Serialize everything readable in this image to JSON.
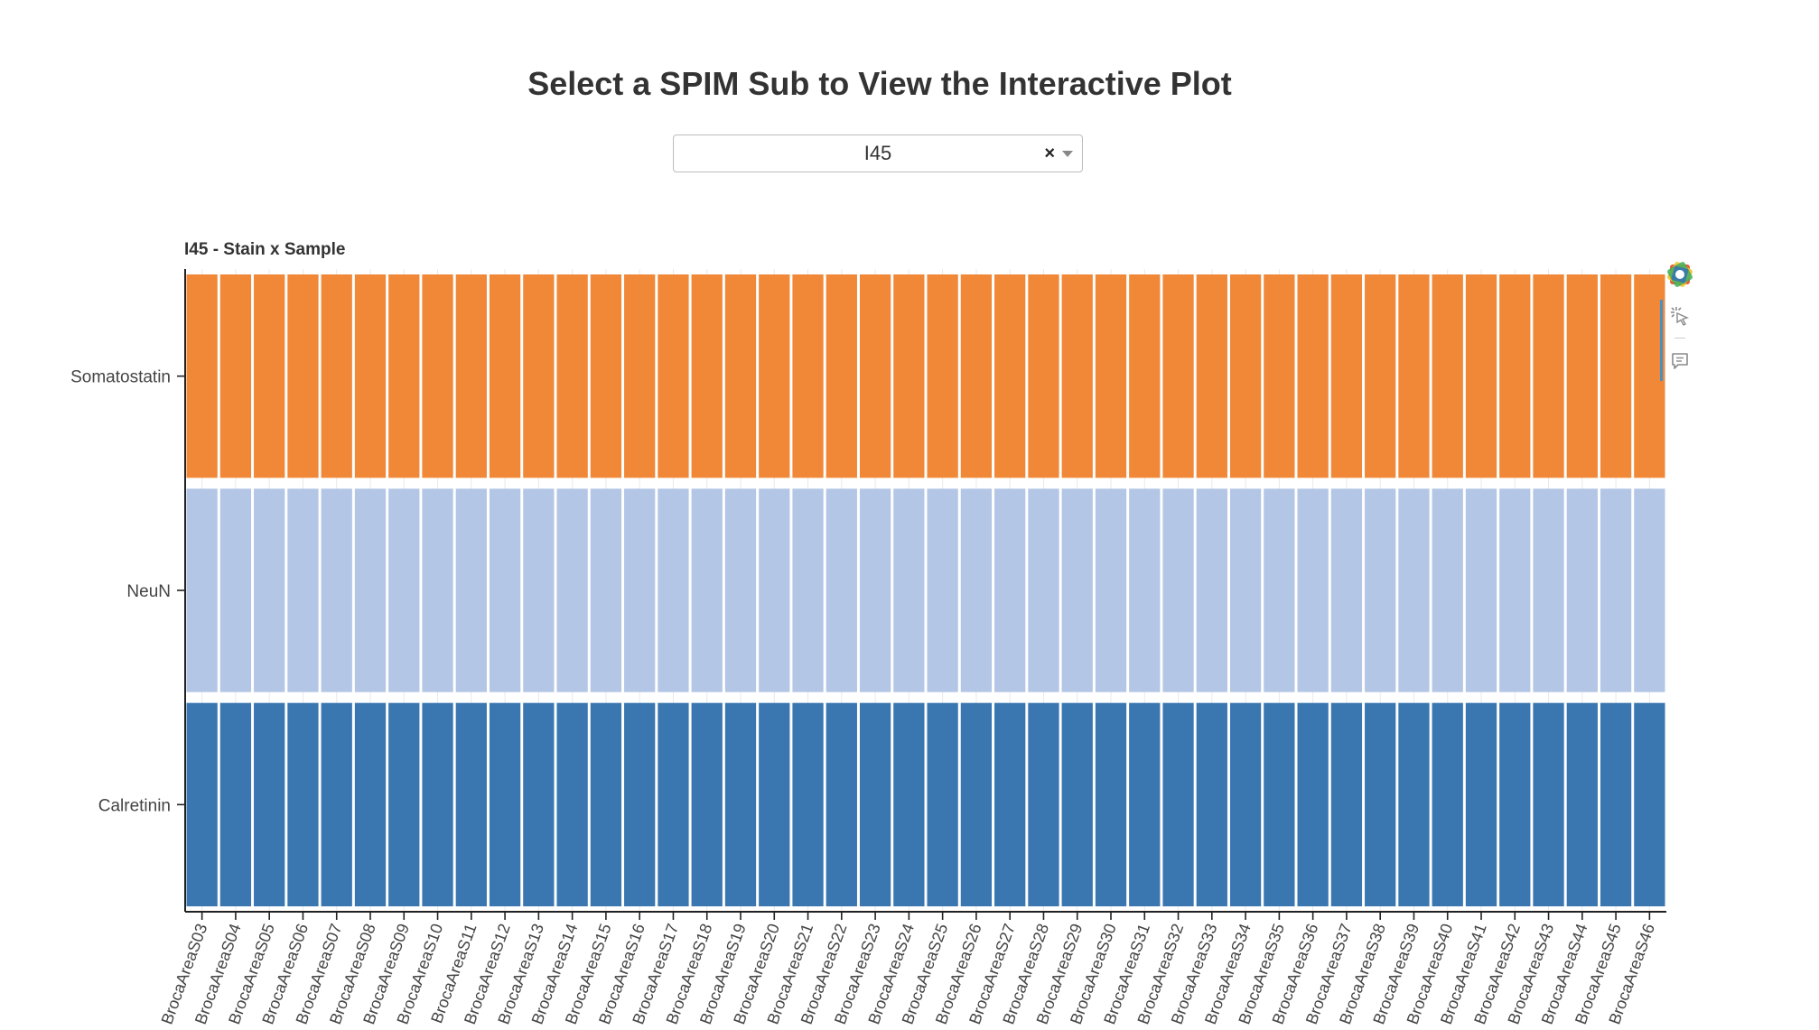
{
  "header": {
    "title": "Select a SPIM Sub to View the Interactive Plot"
  },
  "selector": {
    "selected": "I45",
    "clear_symbol": "×"
  },
  "toolbar": {
    "tools": [
      "bokeh-logo-icon",
      "hover-tool-icon",
      "comment-tool-icon"
    ]
  },
  "chart_data": {
    "type": "heatmap",
    "title": "I45 - Stain x Sample",
    "xlabel": "",
    "ylabel": "",
    "grid": false,
    "legend": "none",
    "x": [
      "BrocaAreaS03",
      "BrocaAreaS04",
      "BrocaAreaS05",
      "BrocaAreaS06",
      "BrocaAreaS07",
      "BrocaAreaS08",
      "BrocaAreaS09",
      "BrocaAreaS10",
      "BrocaAreaS11",
      "BrocaAreaS12",
      "BrocaAreaS13",
      "BrocaAreaS14",
      "BrocaAreaS15",
      "BrocaAreaS16",
      "BrocaAreaS17",
      "BrocaAreaS18",
      "BrocaAreaS19",
      "BrocaAreaS20",
      "BrocaAreaS21",
      "BrocaAreaS22",
      "BrocaAreaS23",
      "BrocaAreaS24",
      "BrocaAreaS25",
      "BrocaAreaS26",
      "BrocaAreaS27",
      "BrocaAreaS28",
      "BrocaAreaS29",
      "BrocaAreaS30",
      "BrocaAreaS31",
      "BrocaAreaS32",
      "BrocaAreaS33",
      "BrocaAreaS34",
      "BrocaAreaS35",
      "BrocaAreaS36",
      "BrocaAreaS37",
      "BrocaAreaS38",
      "BrocaAreaS39",
      "BrocaAreaS40",
      "BrocaAreaS41",
      "BrocaAreaS42",
      "BrocaAreaS43",
      "BrocaAreaS44",
      "BrocaAreaS45",
      "BrocaAreaS46"
    ],
    "y": [
      "Somatostatin",
      "NeuN",
      "Calretinin"
    ],
    "colors": {
      "Somatostatin": "#f08838",
      "NeuN": "#b4c6e6",
      "Calretinin": "#3a76b0"
    },
    "cell_fill": "all cells present"
  }
}
